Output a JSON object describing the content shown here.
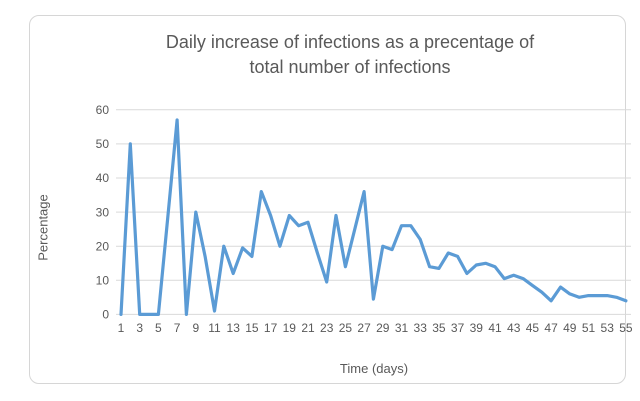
{
  "frame": {
    "background": "#ffffff",
    "border_color": "#d6d6d6"
  },
  "title_lines": {
    "line1": "Daily increase of infections as a precentage of",
    "line2": "total number of infections"
  },
  "chart_data": {
    "type": "line",
    "title": "Daily increase of infections as a precentage of total number of infections",
    "xlabel": "Time (days)",
    "ylabel": "Percentage",
    "x": [
      1,
      2,
      3,
      4,
      5,
      6,
      7,
      8,
      9,
      10,
      11,
      12,
      13,
      14,
      15,
      16,
      17,
      18,
      19,
      20,
      21,
      22,
      23,
      24,
      25,
      26,
      27,
      28,
      29,
      30,
      31,
      32,
      33,
      34,
      35,
      36,
      37,
      38,
      39,
      40,
      41,
      42,
      43,
      44,
      45,
      46,
      47,
      48,
      49,
      50,
      51,
      52,
      53,
      54,
      55
    ],
    "values": [
      0,
      50,
      0,
      0,
      0,
      28.5,
      57,
      0,
      30,
      17,
      1,
      20,
      12,
      19.5,
      17,
      36,
      29,
      20,
      29,
      26,
      27,
      18,
      9.5,
      29,
      14,
      25,
      36,
      4.5,
      20,
      19,
      26,
      26,
      22,
      14,
      13.5,
      18,
      17,
      12,
      14.5,
      15,
      14,
      10.5,
      11.5,
      10.5,
      8.5,
      6.5,
      4,
      8,
      6,
      5,
      5.5,
      5.5,
      5.5,
      5,
      4
    ],
    "ylim": [
      0,
      60
    ],
    "yticks": [
      0,
      10,
      20,
      30,
      40,
      50,
      60
    ],
    "xticks": [
      1,
      3,
      5,
      7,
      9,
      11,
      13,
      15,
      17,
      19,
      21,
      23,
      25,
      27,
      29,
      31,
      33,
      35,
      37,
      39,
      41,
      43,
      45,
      47,
      49,
      51,
      53,
      55
    ],
    "grid": "horizontal",
    "legend": "none",
    "line_color": "#5B9BD5",
    "line_width": 3.2,
    "grid_color": "#d9d9d9",
    "text_color": "#595959",
    "tick_font_size": 12
  }
}
